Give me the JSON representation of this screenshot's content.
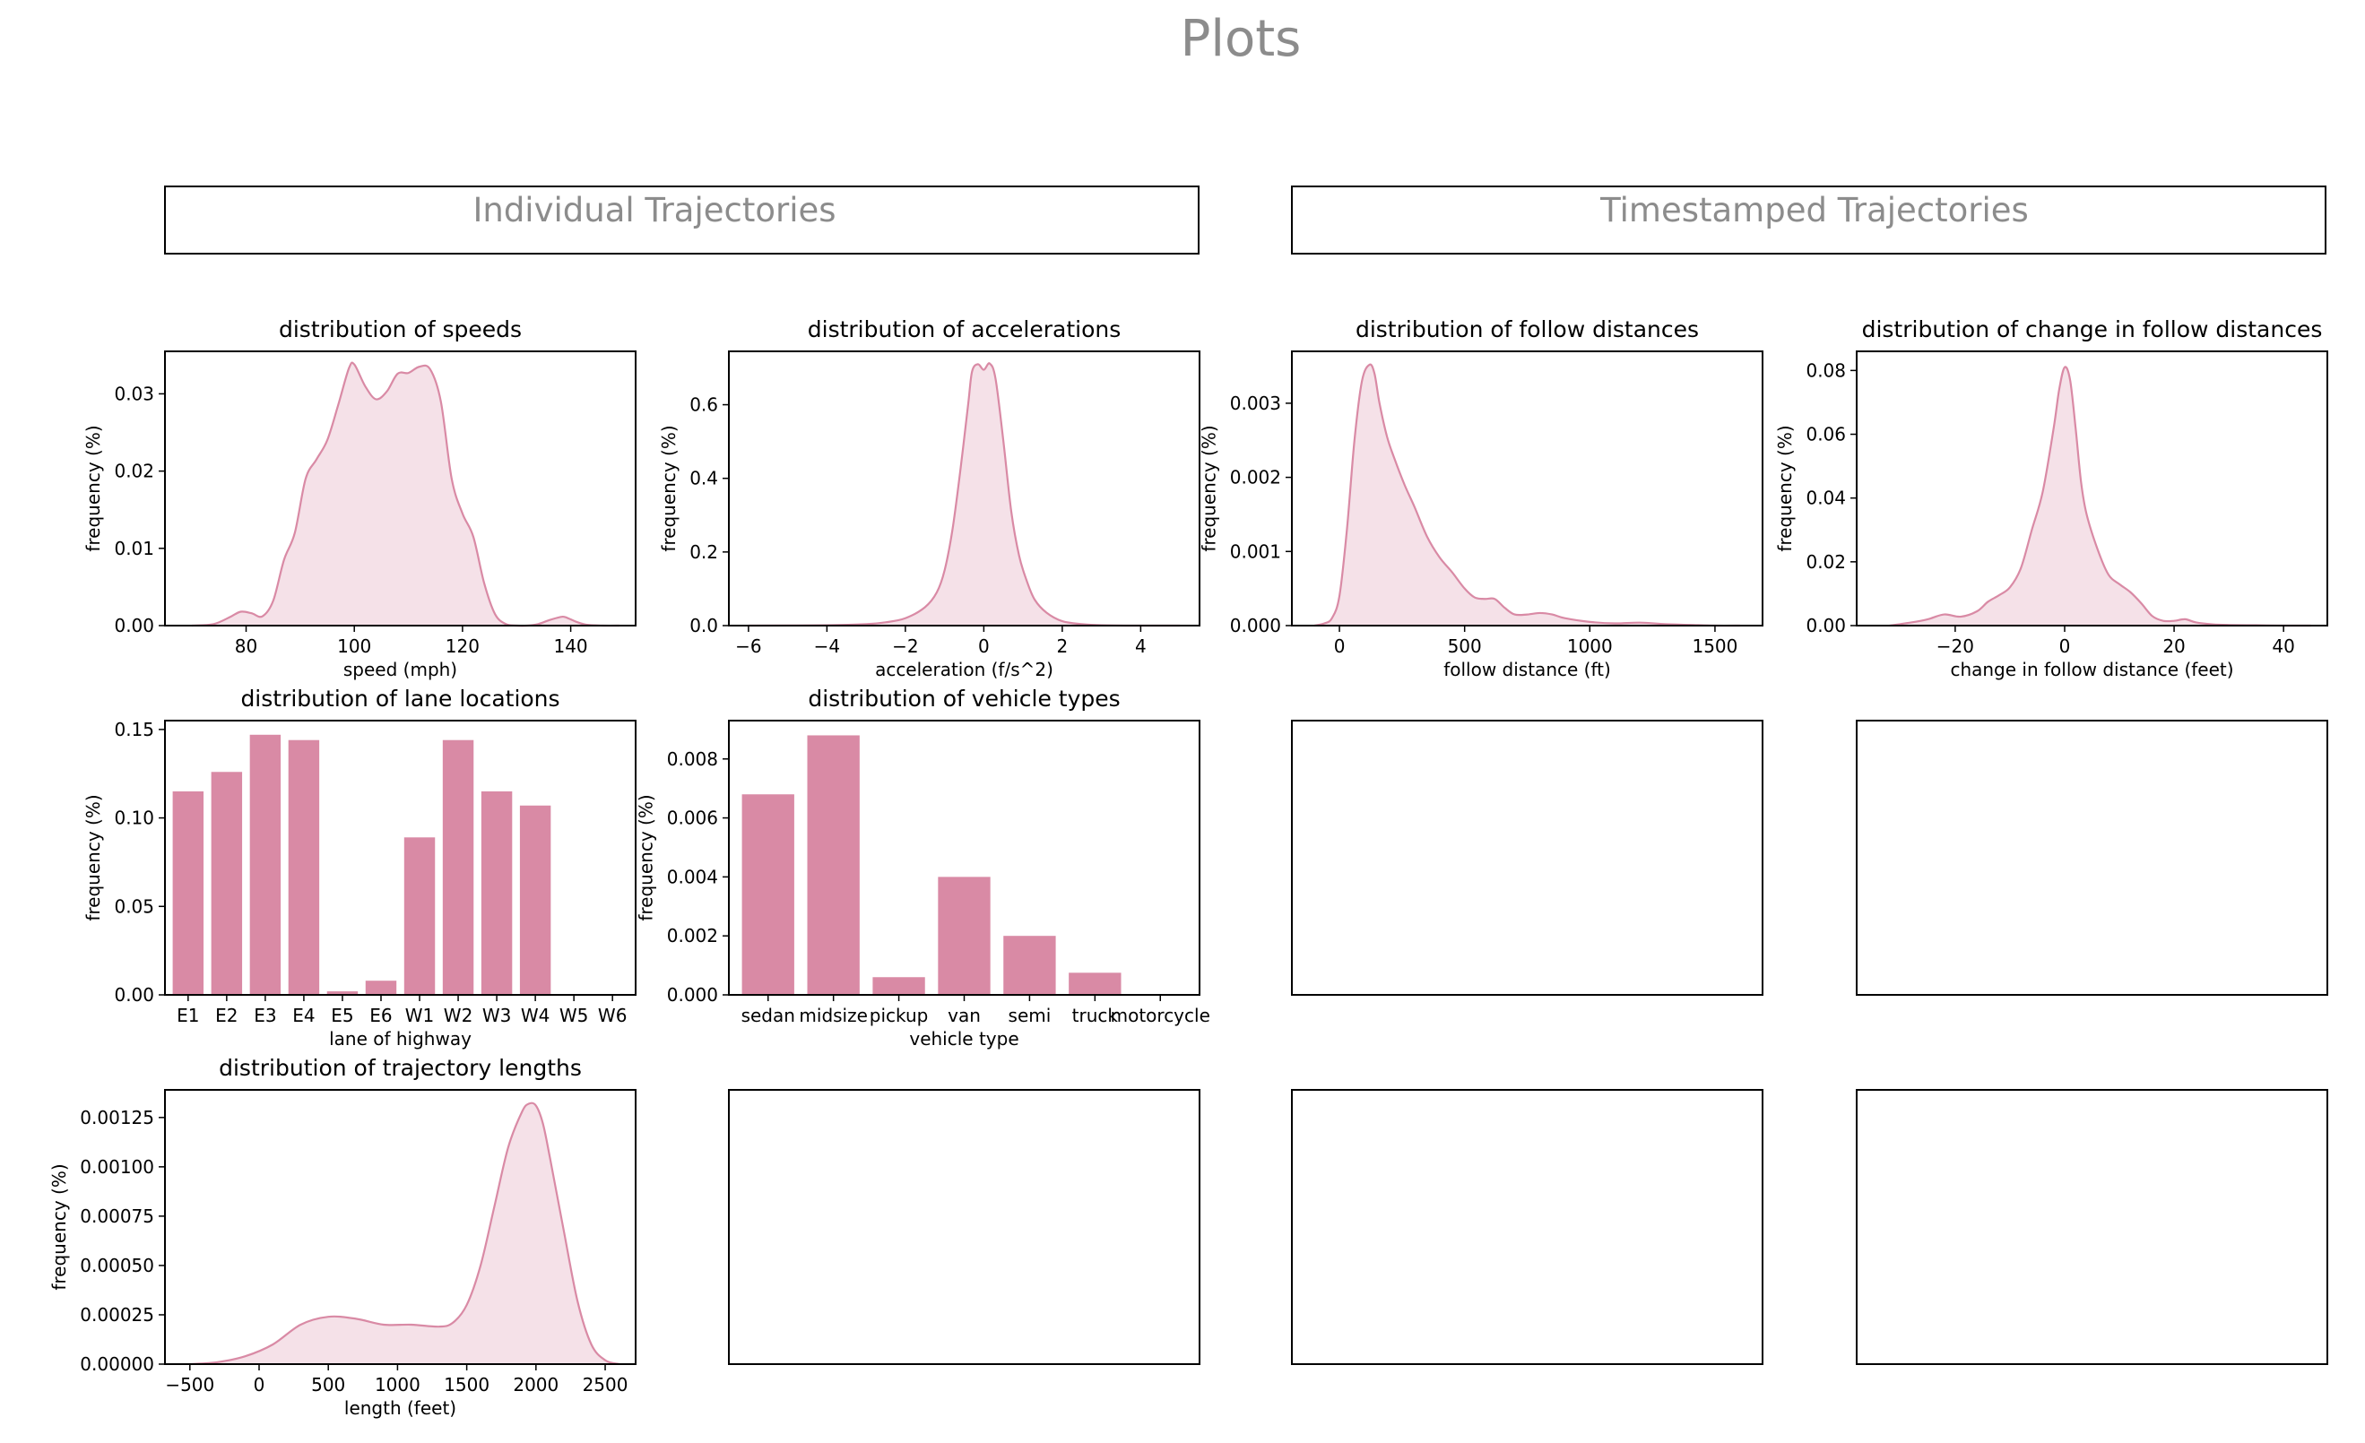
{
  "title": "Plots",
  "sections": [
    "Individual Trajectories",
    "Timestamped Trajectories"
  ],
  "colors": {
    "fill": "#f5e1e8",
    "line": "#d98aa5",
    "bar": "#d98aa5",
    "text_gray": "#8c8c8c"
  },
  "chart_data": [
    {
      "id": "speeds",
      "type": "area",
      "title": "distribution of speeds",
      "xlabel": "speed (mph)",
      "ylabel": "frequency (%)",
      "xlim": [
        65,
        152
      ],
      "ylim": [
        0,
        0.0355
      ],
      "xticks": [
        80,
        100,
        120,
        140
      ],
      "yticks": [
        0.0,
        0.01,
        0.02,
        0.03
      ],
      "ytick_decimals": 2,
      "x": [
        70,
        74,
        77,
        79,
        81,
        83,
        85,
        87,
        89,
        91,
        93,
        95,
        97,
        99,
        100,
        102,
        104,
        106,
        108,
        110,
        112,
        114,
        116,
        118,
        120,
        122,
        124,
        126,
        128,
        130,
        132,
        134,
        136,
        138,
        139,
        141,
        143,
        146,
        149
      ],
      "y": [
        0.0,
        0.0002,
        0.0011,
        0.0018,
        0.0016,
        0.0012,
        0.0032,
        0.0085,
        0.012,
        0.019,
        0.0215,
        0.024,
        0.0285,
        0.0333,
        0.0338,
        0.031,
        0.0293,
        0.0303,
        0.0326,
        0.0327,
        0.0335,
        0.0332,
        0.029,
        0.019,
        0.0145,
        0.0115,
        0.0055,
        0.0015,
        0.0002,
        0.0,
        0.0,
        0.0002,
        0.0007,
        0.0011,
        0.0011,
        0.0005,
        0.0001,
        0.0,
        0.0
      ]
    },
    {
      "id": "accelerations",
      "type": "area",
      "title": "distribution of accelerations",
      "xlabel": "acceleration (f/s^2)",
      "ylabel": "frequency (%)",
      "xlim": [
        -6.5,
        5.5
      ],
      "ylim": [
        0,
        0.745
      ],
      "xticks": [
        -6,
        -4,
        -2,
        0,
        2,
        4
      ],
      "yticks": [
        0.0,
        0.2,
        0.4,
        0.6
      ],
      "ytick_decimals": 1,
      "x": [
        -6,
        -4,
        -3,
        -2.5,
        -2,
        -1.5,
        -1.2,
        -1,
        -0.8,
        -0.6,
        -0.4,
        -0.3,
        -0.15,
        0,
        0.15,
        0.3,
        0.5,
        0.7,
        0.9,
        1.1,
        1.3,
        1.6,
        2,
        2.5,
        3,
        4,
        5
      ],
      "y": [
        0,
        0.001,
        0.004,
        0.009,
        0.02,
        0.05,
        0.09,
        0.15,
        0.26,
        0.42,
        0.6,
        0.69,
        0.71,
        0.695,
        0.712,
        0.67,
        0.5,
        0.31,
        0.19,
        0.12,
        0.07,
        0.035,
        0.012,
        0.004,
        0.001,
        0,
        0
      ]
    },
    {
      "id": "follow",
      "type": "area",
      "title": "distribution of follow distances",
      "xlabel": "follow distance (ft)",
      "ylabel": "frequency (%)",
      "xlim": [
        -190,
        1690
      ],
      "ylim": [
        0,
        0.0037
      ],
      "xticks": [
        0,
        500,
        1000,
        1500
      ],
      "yticks": [
        0.0,
        0.001,
        0.002,
        0.003
      ],
      "ytick_decimals": 3,
      "x": [
        -100,
        -60,
        -30,
        0,
        30,
        60,
        90,
        120,
        140,
        160,
        190,
        220,
        260,
        300,
        350,
        400,
        450,
        500,
        540,
        580,
        620,
        660,
        700,
        750,
        800,
        850,
        900,
        1000,
        1100,
        1200,
        1300,
        1400,
        1500,
        1600
      ],
      "y": [
        0,
        3e-05,
        0.0001,
        0.0004,
        0.0013,
        0.0025,
        0.0033,
        0.00352,
        0.0034,
        0.003,
        0.00255,
        0.00225,
        0.0019,
        0.0016,
        0.0012,
        0.00092,
        0.00072,
        0.0005,
        0.00038,
        0.00036,
        0.00036,
        0.00024,
        0.00015,
        0.00015,
        0.00017,
        0.00015,
        0.0001,
        5e-05,
        3e-05,
        4e-05,
        2e-05,
        1e-05,
        0,
        0
      ]
    },
    {
      "id": "change_follow",
      "type": "area",
      "title": "distribution of change in follow distances",
      "xlabel": "change in follow distance (feet)",
      "ylabel": "frequency (%)",
      "xlim": [
        -38,
        48
      ],
      "ylim": [
        0,
        0.086
      ],
      "xticks": [
        -20,
        0,
        20,
        40
      ],
      "yticks": [
        0.0,
        0.02,
        0.04,
        0.06,
        0.08
      ],
      "ytick_decimals": 2,
      "x": [
        -32,
        -28,
        -25,
        -22,
        -19,
        -16,
        -14,
        -12,
        -10,
        -8,
        -6,
        -4,
        -2,
        -1,
        0,
        1,
        2,
        3,
        4,
        6,
        8,
        10,
        12,
        14,
        16,
        18,
        20,
        22,
        24,
        27,
        30,
        35,
        40,
        45
      ],
      "y": [
        0,
        0.001,
        0.002,
        0.0035,
        0.0028,
        0.0045,
        0.0075,
        0.0095,
        0.012,
        0.018,
        0.03,
        0.042,
        0.062,
        0.074,
        0.081,
        0.077,
        0.062,
        0.045,
        0.035,
        0.024,
        0.016,
        0.013,
        0.0105,
        0.007,
        0.003,
        0.0015,
        0.0015,
        0.002,
        0.001,
        0.0004,
        0.0002,
        0.0001,
        0,
        0
      ]
    },
    {
      "id": "lanes",
      "type": "bar",
      "title": "distribution of lane locations",
      "xlabel": "lane of highway",
      "ylabel": "frequency (%)",
      "ylim": [
        0,
        0.155
      ],
      "yticks": [
        0.0,
        0.05,
        0.1,
        0.15
      ],
      "ytick_decimals": 2,
      "categories": [
        "E1",
        "E2",
        "E3",
        "E4",
        "E5",
        "E6",
        "W1",
        "W2",
        "W3",
        "W4",
        "W5",
        "W6"
      ],
      "values": [
        0.115,
        0.126,
        0.147,
        0.144,
        0.002,
        0.008,
        0.089,
        0.144,
        0.115,
        0.107,
        0,
        0
      ]
    },
    {
      "id": "vehicles",
      "type": "bar",
      "title": "distribution of vehicle types",
      "xlabel": "vehicle type",
      "ylabel": "frequency (%)",
      "ylim": [
        0,
        0.0093
      ],
      "yticks": [
        0.0,
        0.002,
        0.004,
        0.006,
        0.008
      ],
      "ytick_decimals": 3,
      "categories": [
        "sedan",
        "midsize",
        "pickup",
        "van",
        "semi",
        "truck",
        "motorcycle"
      ],
      "values": [
        0.0068,
        0.0088,
        0.0006,
        0.004,
        0.002,
        0.00075,
        0
      ]
    },
    {
      "id": "lengths",
      "type": "area",
      "title": "distribution of trajectory lengths",
      "xlabel": "length (feet)",
      "ylabel": "frequency (%)",
      "xlim": [
        -680,
        2720
      ],
      "ylim": [
        0,
        0.00139
      ],
      "xticks": [
        -500,
        0,
        500,
        1000,
        1500,
        2000,
        2500
      ],
      "yticks": [
        0,
        0.00025,
        0.0005,
        0.00075,
        0.001,
        0.00125
      ],
      "ytick_decimals": 5,
      "x": [
        -500,
        -300,
        -100,
        100,
        300,
        500,
        700,
        900,
        1100,
        1300,
        1400,
        1500,
        1600,
        1700,
        1800,
        1900,
        1950,
        2000,
        2050,
        2100,
        2200,
        2300,
        2400,
        2500,
        2600
      ],
      "y": [
        0,
        1e-05,
        4e-05,
        0.0001,
        0.0002,
        0.00024,
        0.00023,
        0.0002,
        0.0002,
        0.00019,
        0.00021,
        0.0003,
        0.0005,
        0.0008,
        0.0011,
        0.00128,
        0.00132,
        0.00131,
        0.00122,
        0.00105,
        0.00068,
        0.00032,
        0.0001,
        2e-05,
        0
      ]
    },
    {
      "id": "empty_2_3",
      "type": "table"
    },
    {
      "id": "empty_2_4",
      "type": "table"
    },
    {
      "id": "empty_3_2",
      "type": "table"
    },
    {
      "id": "empty_3_3",
      "type": "table"
    },
    {
      "id": "empty_3_4",
      "type": "table"
    }
  ]
}
